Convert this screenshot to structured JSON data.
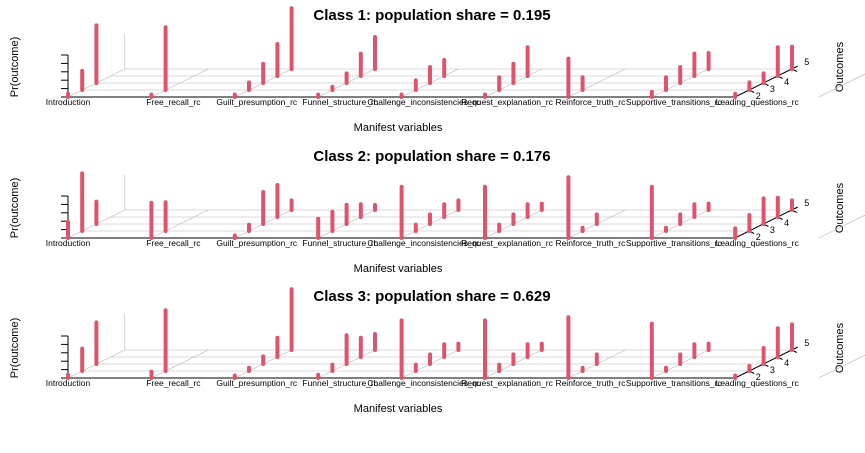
{
  "chart_data": [
    {
      "type": "bar",
      "subtype": "3d-stem",
      "title": "Class 1: population share = 0.195",
      "xlabel": "Manifest variables",
      "ylabel": "Pr(outcome)",
      "zlabel": "Outcomes",
      "categories": [
        "Introduction",
        "Free_recall_rc",
        "Guilt_presumption_rc",
        "Funnel_structure_rc",
        "Challenge_inconsistencies_rc",
        "Request_explanation_rc",
        "Reinforce_truth_rc",
        "Supportive_transitions_rc",
        "Leading_questions_rc"
      ],
      "outcomes": [
        "1",
        "2",
        "3",
        "4",
        "5"
      ],
      "outcome_tick_labels": [
        "2",
        "3",
        "4",
        "5"
      ],
      "values": [
        [
          0.05,
          0.3,
          0.9
        ],
        [
          0.02,
          0.98
        ],
        [
          0.02,
          0.12,
          0.3,
          0.5,
          0.95
        ],
        [
          0.02,
          0.05,
          0.15,
          0.35,
          0.5
        ],
        [
          0.04,
          0.15,
          0.25,
          0.25
        ],
        [
          0.04,
          0.2,
          0.3,
          0.45
        ],
        [
          0.6,
          0.2
        ],
        [
          0.08,
          0.2,
          0.25,
          0.35,
          0.25
        ],
        [
          0.05,
          0.12,
          0.15,
          0.45,
          0.35
        ]
      ]
    },
    {
      "type": "bar",
      "subtype": "3d-stem",
      "title": "Class 2: population share = 0.176",
      "xlabel": "Manifest variables",
      "ylabel": "Pr(outcome)",
      "zlabel": "Outcomes",
      "categories": [
        "Introduction",
        "Free_recall_rc",
        "Guilt_presumption_rc",
        "Funnel_structure_rc",
        "Challenge_inconsistencies_rc",
        "Request_explanation_rc",
        "Reinforce_truth_rc",
        "Supportive_transitions_rc",
        "Leading_questions_rc"
      ],
      "outcomes": [
        "1",
        "2",
        "3",
        "4",
        "5"
      ],
      "outcome_tick_labels": [
        "2",
        "3",
        "4",
        "5"
      ],
      "values": [
        [
          0.25,
          0.9,
          0.35
        ],
        [
          0.55,
          0.45
        ],
        [
          0.02,
          0.1,
          0.5,
          0.5,
          0.15
        ],
        [
          0.3,
          0.3,
          0.3,
          0.2,
          0.08
        ],
        [
          0.8,
          0.1,
          0.15,
          0.2,
          0.15
        ],
        [
          0.8,
          0.1,
          0.15,
          0.2,
          0.1
        ],
        [
          0.95,
          0.05,
          0.15
        ],
        [
          0.8,
          0.05,
          0.15,
          0.2,
          0.1
        ],
        [
          0.15,
          0.25,
          0.4,
          0.3,
          0.15
        ]
      ]
    },
    {
      "type": "bar",
      "subtype": "3d-stem",
      "title": "Class 3: population share = 0.629",
      "xlabel": "Manifest variables",
      "ylabel": "Pr(outcome)",
      "zlabel": "Outcomes",
      "categories": [
        "Introduction",
        "Free_recall_rc",
        "Guilt_presumption_rc",
        "Funnel_structure_rc",
        "Challenge_inconsistencies_rc",
        "Request_explanation_rc",
        "Reinforce_truth_rc",
        "Supportive_transitions_rc",
        "Leading_questions_rc"
      ],
      "outcomes": [
        "1",
        "2",
        "3",
        "4",
        "5"
      ],
      "outcome_tick_labels": [
        "2",
        "3",
        "4",
        "5"
      ],
      "values": [
        [
          0.05,
          0.35,
          0.65
        ],
        [
          0.1,
          0.95
        ],
        [
          0.02,
          0.05,
          0.12,
          0.3,
          0.95
        ],
        [
          0.05,
          0.1,
          0.45,
          0.3,
          0.25
        ],
        [
          0.9,
          0.1,
          0.15,
          0.2,
          0.1
        ],
        [
          0.9,
          0.1,
          0.15,
          0.2,
          0.1
        ],
        [
          0.95,
          0.05,
          0.15
        ],
        [
          0.85,
          0.05,
          0.15,
          0.2,
          0.1
        ],
        [
          0.03,
          0.08,
          0.25,
          0.45,
          0.4
        ]
      ]
    }
  ],
  "style": {
    "stem_color": "#df536b",
    "grid_color": "#b4b4b4",
    "axis_color": "#000000"
  }
}
